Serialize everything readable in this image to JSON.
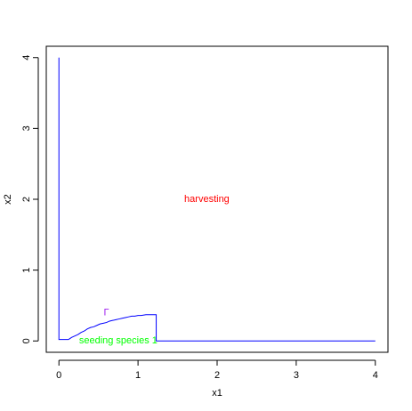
{
  "chart_data": {
    "type": "line",
    "title": "",
    "xlabel": "x1",
    "ylabel": "x2",
    "xlim": [
      -0.16,
      4.16
    ],
    "ylim": [
      -0.16,
      4.16
    ],
    "xticks": [
      0,
      1,
      2,
      3,
      4
    ],
    "yticks": [
      0,
      1,
      2,
      3,
      4
    ],
    "grid": false,
    "series": [
      {
        "color": "#0000FF",
        "points": [
          [
            0,
            4.0
          ],
          [
            0,
            0.02
          ],
          [
            0.12,
            0.02
          ],
          [
            0.16,
            0.05
          ],
          [
            0.2,
            0.07
          ],
          [
            0.24,
            0.09
          ],
          [
            0.28,
            0.12
          ],
          [
            0.32,
            0.14
          ],
          [
            0.36,
            0.17
          ],
          [
            0.4,
            0.19
          ],
          [
            0.44,
            0.2
          ],
          [
            0.48,
            0.22
          ],
          [
            0.52,
            0.24
          ],
          [
            0.56,
            0.25
          ],
          [
            0.6,
            0.26
          ],
          [
            0.64,
            0.28
          ],
          [
            0.68,
            0.29
          ],
          [
            0.72,
            0.3
          ],
          [
            0.76,
            0.31
          ],
          [
            0.8,
            0.32
          ],
          [
            0.84,
            0.33
          ],
          [
            0.88,
            0.34
          ],
          [
            0.92,
            0.35
          ],
          [
            0.96,
            0.35
          ],
          [
            1.0,
            0.36
          ],
          [
            1.04,
            0.36
          ],
          [
            1.1,
            0.37
          ],
          [
            1.2,
            0.37
          ],
          [
            1.23,
            0.37
          ],
          [
            1.23,
            0.0
          ],
          [
            4.0,
            0.0
          ]
        ]
      }
    ],
    "annotations": [
      {
        "text": "harvesting",
        "x": 1.87,
        "y": 2.0,
        "color": "#FF0000"
      },
      {
        "text": "seeding species 1",
        "x": 0.75,
        "y": 0.0,
        "color": "#00FF00"
      },
      {
        "text": "Γ",
        "x": 0.6,
        "y": 0.4,
        "color": "#A020F0"
      }
    ]
  }
}
